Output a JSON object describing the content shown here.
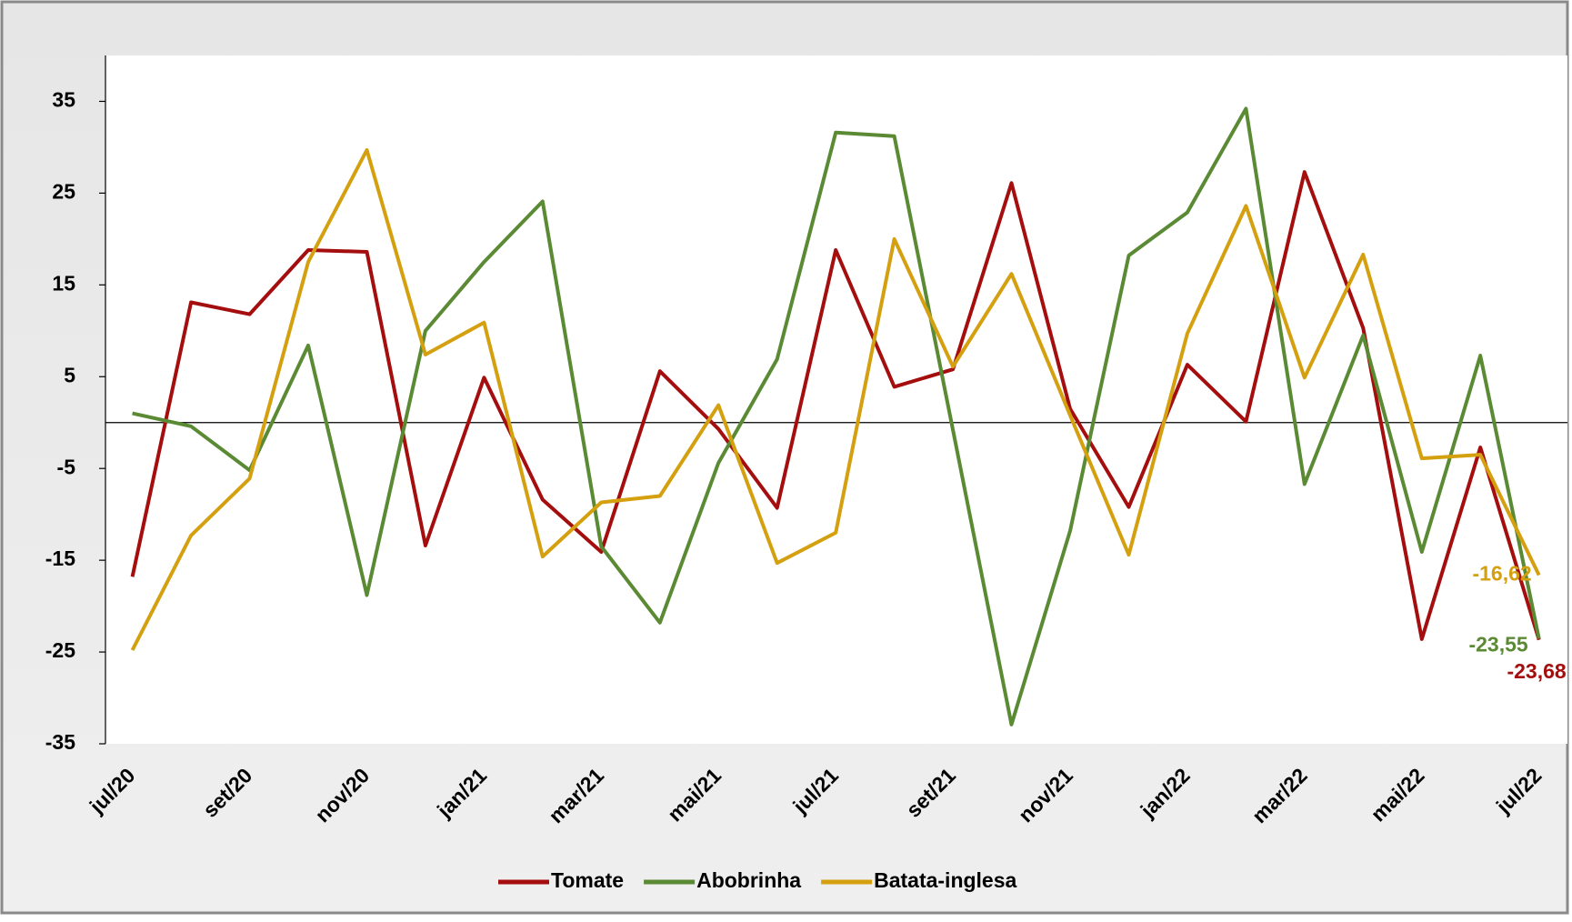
{
  "chart_data": {
    "type": "line",
    "categories": [
      "jul/20",
      null,
      "set/20",
      null,
      "nov/20",
      null,
      "jan/21",
      null,
      "mar/21",
      null,
      "mai/21",
      null,
      "jul/21",
      null,
      "set/21",
      null,
      "nov/21",
      null,
      "jan/22",
      null,
      "mar/22",
      null,
      "mai/22",
      null,
      "jul/22"
    ],
    "series": [
      {
        "name": "Tomate",
        "color": "#a50e0e",
        "values": [
          -16.8,
          13.1,
          11.8,
          18.8,
          18.6,
          -13.4,
          4.9,
          -8.4,
          -14.1,
          5.6,
          -0.7,
          -9.3,
          18.8,
          3.9,
          5.8,
          26.1,
          1.5,
          -9.2,
          6.3,
          0.1,
          27.3,
          10.3,
          -23.6,
          -2.7,
          -23.68
        ],
        "value_labels": [
          null,
          null,
          null,
          null,
          null,
          null,
          null,
          null,
          null,
          null,
          null,
          null,
          null,
          null,
          null,
          null,
          null,
          null,
          null,
          null,
          null,
          null,
          null,
          null,
          "-23,68"
        ]
      },
      {
        "name": "Abobrinha",
        "color": "#5b8a34",
        "values": [
          1.0,
          -0.4,
          -5.2,
          8.4,
          -18.8,
          10.0,
          17.5,
          24.1,
          -13.5,
          -21.8,
          -4.4,
          6.9,
          31.6,
          31.2,
          -0.8,
          -32.9,
          -11.8,
          18.2,
          22.9,
          34.2,
          -6.7,
          9.5,
          -14.1,
          7.3,
          -23.55
        ],
        "value_labels": [
          null,
          null,
          null,
          null,
          null,
          null,
          null,
          null,
          null,
          null,
          null,
          null,
          null,
          null,
          null,
          null,
          null,
          null,
          null,
          null,
          null,
          null,
          null,
          null,
          "-23,55"
        ]
      },
      {
        "name": "Batata-inglesa",
        "color": "#d4a010",
        "values": [
          -24.8,
          -12.3,
          -6.1,
          17.5,
          29.7,
          7.4,
          10.9,
          -14.6,
          -8.7,
          -8.0,
          1.9,
          -15.3,
          -12.0,
          20.0,
          6.1,
          16.2,
          0.8,
          -14.4,
          9.7,
          23.6,
          4.9,
          18.3,
          -3.9,
          -3.5,
          -16.62
        ],
        "value_labels": [
          null,
          null,
          null,
          null,
          null,
          null,
          null,
          null,
          null,
          null,
          null,
          null,
          null,
          null,
          null,
          null,
          null,
          null,
          null,
          null,
          null,
          null,
          null,
          null,
          "-16,62"
        ]
      }
    ],
    "ylim": [
      -35,
      40
    ],
    "yticks": [
      35,
      25,
      15,
      5,
      -5,
      -15,
      -25,
      -35
    ],
    "legend": "bottom"
  }
}
